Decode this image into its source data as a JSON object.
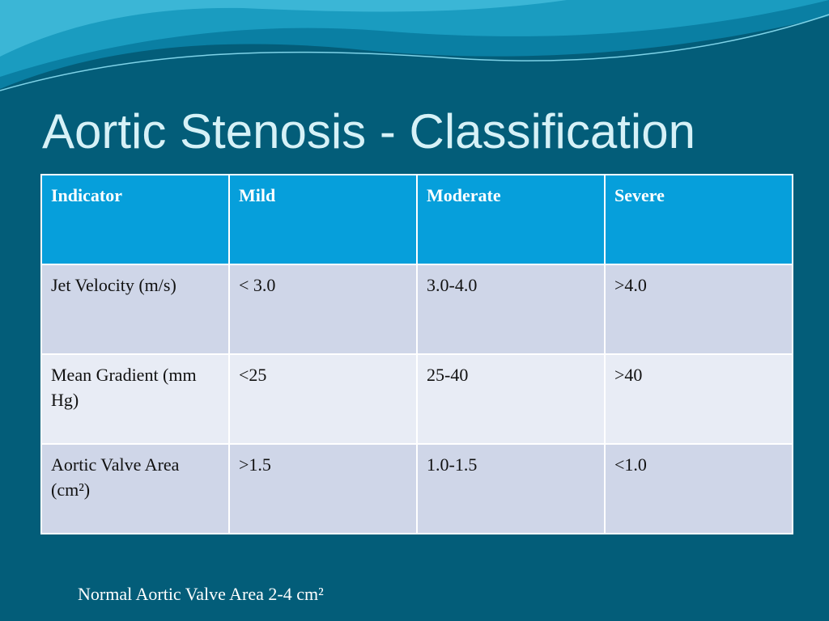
{
  "title": "Aortic Stenosis - Classification",
  "table": {
    "header": [
      "Indicator",
      "Mild",
      "Moderate",
      "Severe"
    ],
    "rows": [
      [
        "Jet Velocity (m/s)",
        "< 3.0",
        "3.0-4.0",
        ">4.0"
      ],
      [
        "Mean Gradient (mm Hg)",
        "<25",
        "25-40",
        ">40"
      ],
      [
        "Aortic Valve Area (cm²)",
        ">1.5",
        "1.0-1.5",
        "<1.0"
      ]
    ]
  },
  "footnote": "Normal Aortic Valve Area 2-4 cm²"
}
